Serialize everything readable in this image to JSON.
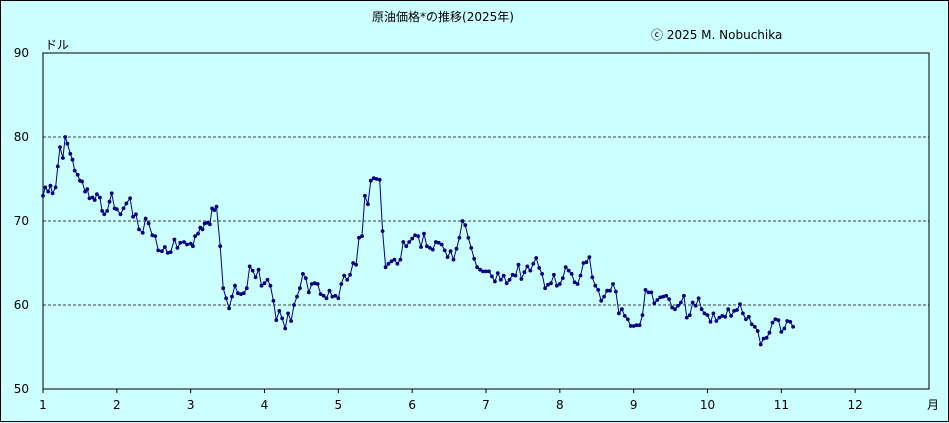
{
  "chart_data": {
    "type": "line",
    "title": "原油価格*の推移(2025年)",
    "copyright": "ⓒ 2025  M. Nobuchika",
    "ylabel": "ドル",
    "xlabel": "月",
    "ylim": [
      50,
      90
    ],
    "yticks": [
      50,
      60,
      70,
      80,
      90
    ],
    "xlim": [
      1,
      13
    ],
    "xticks": [
      1,
      2,
      3,
      4,
      5,
      6,
      7,
      8,
      9,
      10,
      11,
      12
    ],
    "grid": "horizontal dashed",
    "colors": {
      "line": "#000080",
      "background": "#ccffff",
      "grid": "#000000"
    },
    "series": [
      {
        "values": [
          [
            1.0,
            73.0
          ],
          [
            1.03,
            74.0
          ],
          [
            1.07,
            73.5
          ],
          [
            1.1,
            74.2
          ],
          [
            1.13,
            73.3
          ],
          [
            1.17,
            74.0
          ],
          [
            1.2,
            76.5
          ],
          [
            1.23,
            78.8
          ],
          [
            1.27,
            77.5
          ],
          [
            1.3,
            80.0
          ],
          [
            1.33,
            79.2
          ],
          [
            1.37,
            78.0
          ],
          [
            1.4,
            77.3
          ],
          [
            1.43,
            76.0
          ],
          [
            1.47,
            75.5
          ],
          [
            1.5,
            74.8
          ],
          [
            1.53,
            74.7
          ],
          [
            1.57,
            73.5
          ],
          [
            1.6,
            73.8
          ],
          [
            1.63,
            72.7
          ],
          [
            1.67,
            72.8
          ],
          [
            1.7,
            72.5
          ],
          [
            1.73,
            73.2
          ],
          [
            1.77,
            72.8
          ],
          [
            1.8,
            71.2
          ],
          [
            1.83,
            70.8
          ],
          [
            1.87,
            71.2
          ],
          [
            1.9,
            72.3
          ],
          [
            1.93,
            73.3
          ],
          [
            1.97,
            71.5
          ],
          [
            2.0,
            71.4
          ],
          [
            2.05,
            70.8
          ],
          [
            2.09,
            71.5
          ],
          [
            2.13,
            72.1
          ],
          [
            2.18,
            72.7
          ],
          [
            2.22,
            70.5
          ],
          [
            2.26,
            70.8
          ],
          [
            2.3,
            69.0
          ],
          [
            2.35,
            68.6
          ],
          [
            2.39,
            70.3
          ],
          [
            2.43,
            69.7
          ],
          [
            2.48,
            68.3
          ],
          [
            2.52,
            68.2
          ],
          [
            2.56,
            66.5
          ],
          [
            2.61,
            66.4
          ],
          [
            2.65,
            66.9
          ],
          [
            2.69,
            66.2
          ],
          [
            2.73,
            66.3
          ],
          [
            2.78,
            67.8
          ],
          [
            2.82,
            66.8
          ],
          [
            2.86,
            67.4
          ],
          [
            2.91,
            67.5
          ],
          [
            2.95,
            67.2
          ],
          [
            3.0,
            67.3
          ],
          [
            3.03,
            67.0
          ],
          [
            3.06,
            68.2
          ],
          [
            3.1,
            68.5
          ],
          [
            3.13,
            69.2
          ],
          [
            3.16,
            69.0
          ],
          [
            3.19,
            69.7
          ],
          [
            3.23,
            69.8
          ],
          [
            3.26,
            69.6
          ],
          [
            3.29,
            71.5
          ],
          [
            3.32,
            71.3
          ],
          [
            3.35,
            71.7
          ],
          [
            3.4,
            67.0
          ],
          [
            3.44,
            62.0
          ],
          [
            3.48,
            60.8
          ],
          [
            3.52,
            59.6
          ],
          [
            3.56,
            61.0
          ],
          [
            3.6,
            62.3
          ],
          [
            3.64,
            61.4
          ],
          [
            3.68,
            61.3
          ],
          [
            3.72,
            61.4
          ],
          [
            3.76,
            62.0
          ],
          [
            3.8,
            64.6
          ],
          [
            3.84,
            64.1
          ],
          [
            3.88,
            63.3
          ],
          [
            3.92,
            64.2
          ],
          [
            3.96,
            62.3
          ],
          [
            4.0,
            62.6
          ],
          [
            4.04,
            63.0
          ],
          [
            4.08,
            62.3
          ],
          [
            4.12,
            60.5
          ],
          [
            4.16,
            58.2
          ],
          [
            4.2,
            59.3
          ],
          [
            4.24,
            58.4
          ],
          [
            4.28,
            57.2
          ],
          [
            4.32,
            59.0
          ],
          [
            4.36,
            58.1
          ],
          [
            4.4,
            60.0
          ],
          [
            4.44,
            61.0
          ],
          [
            4.48,
            62.0
          ],
          [
            4.52,
            63.7
          ],
          [
            4.56,
            63.2
          ],
          [
            4.6,
            61.5
          ],
          [
            4.64,
            62.5
          ],
          [
            4.68,
            62.6
          ],
          [
            4.72,
            62.5
          ],
          [
            4.76,
            61.3
          ],
          [
            4.8,
            61.1
          ],
          [
            4.84,
            60.8
          ],
          [
            4.88,
            61.7
          ],
          [
            4.92,
            61.0
          ],
          [
            4.96,
            61.1
          ],
          [
            5.0,
            60.8
          ],
          [
            5.04,
            62.5
          ],
          [
            5.08,
            63.5
          ],
          [
            5.12,
            63.0
          ],
          [
            5.16,
            63.6
          ],
          [
            5.2,
            65.0
          ],
          [
            5.24,
            64.8
          ],
          [
            5.28,
            68.0
          ],
          [
            5.32,
            68.2
          ],
          [
            5.36,
            73.0
          ],
          [
            5.4,
            72.0
          ],
          [
            5.44,
            74.8
          ],
          [
            5.48,
            75.1
          ],
          [
            5.52,
            75.0
          ],
          [
            5.56,
            74.9
          ],
          [
            5.6,
            68.8
          ],
          [
            5.64,
            64.5
          ],
          [
            5.68,
            64.9
          ],
          [
            5.72,
            65.2
          ],
          [
            5.76,
            65.4
          ],
          [
            5.8,
            64.9
          ],
          [
            5.84,
            65.4
          ],
          [
            5.88,
            67.5
          ],
          [
            5.92,
            67.0
          ],
          [
            5.96,
            67.5
          ],
          [
            6.0,
            67.9
          ],
          [
            6.04,
            68.3
          ],
          [
            6.08,
            68.2
          ],
          [
            6.12,
            66.9
          ],
          [
            6.16,
            68.5
          ],
          [
            6.2,
            67.0
          ],
          [
            6.24,
            66.8
          ],
          [
            6.28,
            66.6
          ],
          [
            6.32,
            67.5
          ],
          [
            6.36,
            67.4
          ],
          [
            6.4,
            67.2
          ],
          [
            6.44,
            66.5
          ],
          [
            6.48,
            65.7
          ],
          [
            6.52,
            66.4
          ],
          [
            6.56,
            65.4
          ],
          [
            6.6,
            66.7
          ],
          [
            6.64,
            68.0
          ],
          [
            6.68,
            70.0
          ],
          [
            6.72,
            69.5
          ],
          [
            6.76,
            68.0
          ],
          [
            6.8,
            66.8
          ],
          [
            6.84,
            65.5
          ],
          [
            6.88,
            64.5
          ],
          [
            6.92,
            64.2
          ],
          [
            6.96,
            64.0
          ],
          [
            7.0,
            64.0
          ],
          [
            7.04,
            64.0
          ],
          [
            7.08,
            63.4
          ],
          [
            7.12,
            62.8
          ],
          [
            7.16,
            63.8
          ],
          [
            7.2,
            63.0
          ],
          [
            7.24,
            63.5
          ],
          [
            7.28,
            62.6
          ],
          [
            7.32,
            63.0
          ],
          [
            7.36,
            63.6
          ],
          [
            7.4,
            63.5
          ],
          [
            7.44,
            64.8
          ],
          [
            7.48,
            63.1
          ],
          [
            7.52,
            63.9
          ],
          [
            7.56,
            64.6
          ],
          [
            7.6,
            64.1
          ],
          [
            7.64,
            64.9
          ],
          [
            7.68,
            65.6
          ],
          [
            7.72,
            64.4
          ],
          [
            7.76,
            63.7
          ],
          [
            7.8,
            62.0
          ],
          [
            7.84,
            62.4
          ],
          [
            7.88,
            62.6
          ],
          [
            7.92,
            63.6
          ],
          [
            7.96,
            62.3
          ],
          [
            8.0,
            62.5
          ],
          [
            8.04,
            63.2
          ],
          [
            8.08,
            64.5
          ],
          [
            8.12,
            64.1
          ],
          [
            8.16,
            63.7
          ],
          [
            8.2,
            62.7
          ],
          [
            8.24,
            62.5
          ],
          [
            8.28,
            63.5
          ],
          [
            8.32,
            65.0
          ],
          [
            8.36,
            65.1
          ],
          [
            8.4,
            65.7
          ],
          [
            8.44,
            63.3
          ],
          [
            8.48,
            62.3
          ],
          [
            8.52,
            61.8
          ],
          [
            8.56,
            60.5
          ],
          [
            8.6,
            61.0
          ],
          [
            8.64,
            61.7
          ],
          [
            8.68,
            61.7
          ],
          [
            8.72,
            62.5
          ],
          [
            8.76,
            61.6
          ],
          [
            8.8,
            59.0
          ],
          [
            8.84,
            59.5
          ],
          [
            8.88,
            58.7
          ],
          [
            8.92,
            58.3
          ],
          [
            8.96,
            57.5
          ],
          [
            9.0,
            57.5
          ],
          [
            9.04,
            57.6
          ],
          [
            9.08,
            57.6
          ],
          [
            9.12,
            58.8
          ],
          [
            9.16,
            61.8
          ],
          [
            9.2,
            61.5
          ],
          [
            9.24,
            61.5
          ],
          [
            9.28,
            60.2
          ],
          [
            9.32,
            60.6
          ],
          [
            9.36,
            60.9
          ],
          [
            9.4,
            61.0
          ],
          [
            9.44,
            61.1
          ],
          [
            9.48,
            60.7
          ],
          [
            9.52,
            59.7
          ],
          [
            9.56,
            59.5
          ],
          [
            9.6,
            59.9
          ],
          [
            9.64,
            60.3
          ],
          [
            9.68,
            61.1
          ],
          [
            9.72,
            58.5
          ],
          [
            9.76,
            58.8
          ],
          [
            9.8,
            60.3
          ],
          [
            9.84,
            59.9
          ],
          [
            9.88,
            60.8
          ],
          [
            9.92,
            59.5
          ],
          [
            9.96,
            59.0
          ],
          [
            10.0,
            58.8
          ],
          [
            10.04,
            58.0
          ],
          [
            10.08,
            59.0
          ],
          [
            10.12,
            58.1
          ],
          [
            10.16,
            58.5
          ],
          [
            10.2,
            58.7
          ],
          [
            10.24,
            58.6
          ],
          [
            10.28,
            59.5
          ],
          [
            10.32,
            58.7
          ],
          [
            10.36,
            59.3
          ],
          [
            10.4,
            59.4
          ],
          [
            10.44,
            60.1
          ],
          [
            10.48,
            59.0
          ],
          [
            10.52,
            58.3
          ],
          [
            10.56,
            58.6
          ],
          [
            10.6,
            57.7
          ],
          [
            10.64,
            57.4
          ],
          [
            10.68,
            56.9
          ],
          [
            10.72,
            55.3
          ],
          [
            10.76,
            56.0
          ],
          [
            10.8,
            56.1
          ],
          [
            10.84,
            56.7
          ],
          [
            10.88,
            57.9
          ],
          [
            10.92,
            58.3
          ],
          [
            10.96,
            58.2
          ],
          [
            11.0,
            56.8
          ],
          [
            11.04,
            57.2
          ],
          [
            11.08,
            58.1
          ],
          [
            11.12,
            58.0
          ],
          [
            11.16,
            57.4
          ]
        ]
      }
    ]
  }
}
